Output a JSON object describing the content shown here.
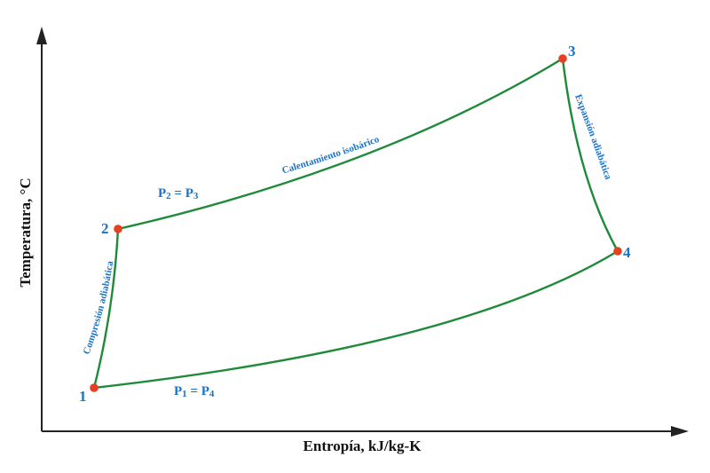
{
  "axes": {
    "x_label": "Entropía, kJ/kg-K",
    "y_label": "Temperatura, °C"
  },
  "colors": {
    "curve": "#1e8a3a",
    "point": "#e3411f",
    "label": "#1a73c9",
    "axis": "#222222"
  },
  "points": [
    {
      "id": "p1",
      "label": "1"
    },
    {
      "id": "p2",
      "label": "2"
    },
    {
      "id": "p3",
      "label": "3"
    },
    {
      "id": "p4",
      "label": "4"
    }
  ],
  "pressures": {
    "high": {
      "main": "P",
      "sub1": "2",
      "eq": " = P",
      "sub2": "3"
    },
    "low": {
      "main": "P",
      "sub1": "1",
      "eq": " = P",
      "sub2": "4"
    }
  },
  "processes": {
    "compression": "Compresión adiabática",
    "heating": "Calentamiento isobárico",
    "expansion": "Expansión adiabática"
  }
}
